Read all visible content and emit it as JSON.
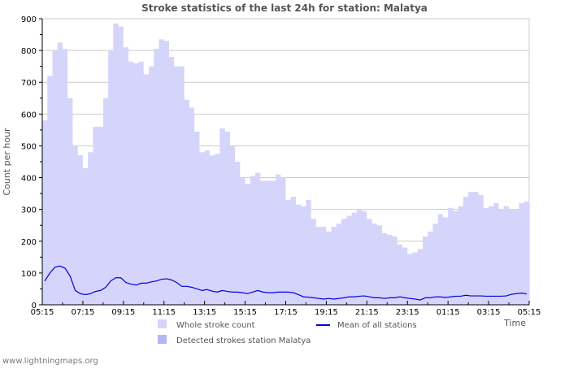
{
  "chart_data": {
    "type": "area",
    "title": "Stroke statistics of the last 24h for station: Malatya",
    "xlabel": "Time",
    "ylabel": "Count per hour",
    "ylim": [
      0,
      900
    ],
    "yticks": [
      "0",
      "100",
      "200",
      "300",
      "400",
      "500",
      "600",
      "700",
      "800",
      "900"
    ],
    "xticks": [
      "05:15",
      "07:15",
      "09:15",
      "11:15",
      "13:15",
      "15:15",
      "17:15",
      "19:15",
      "21:15",
      "23:15",
      "01:15",
      "03:15",
      "05:15"
    ],
    "x_interval_minutes": 15,
    "grid": true,
    "series": [
      {
        "name": "Whole stroke count",
        "type": "area",
        "color": "#d5d5fc",
        "values": [
          580,
          720,
          800,
          825,
          805,
          650,
          500,
          470,
          430,
          480,
          560,
          560,
          650,
          800,
          885,
          875,
          810,
          765,
          760,
          765,
          725,
          750,
          805,
          835,
          830,
          780,
          750,
          750,
          645,
          620,
          545,
          480,
          485,
          470,
          475,
          555,
          545,
          500,
          450,
          400,
          380,
          405,
          415,
          390,
          390,
          390,
          410,
          400,
          330,
          340,
          315,
          310,
          330,
          270,
          245,
          245,
          230,
          245,
          255,
          270,
          280,
          290,
          300,
          295,
          270,
          255,
          250,
          225,
          220,
          215,
          190,
          180,
          160,
          165,
          175,
          215,
          230,
          255,
          285,
          275,
          305,
          295,
          310,
          340,
          355,
          355,
          345,
          305,
          310,
          320,
          300,
          310,
          300,
          300,
          320,
          325
        ]
      },
      {
        "name": "Detected strokes station Malatya",
        "type": "area",
        "color": "#b5b5f7",
        "values": []
      },
      {
        "name": "Mean of all stations",
        "type": "line",
        "color": "#0000dd",
        "values": [
          75,
          100,
          118,
          122,
          115,
          90,
          45,
          35,
          32,
          35,
          42,
          45,
          55,
          75,
          85,
          85,
          70,
          65,
          62,
          68,
          68,
          72,
          75,
          80,
          82,
          78,
          70,
          58,
          58,
          55,
          50,
          45,
          48,
          43,
          40,
          45,
          42,
          40,
          40,
          38,
          35,
          40,
          45,
          40,
          38,
          38,
          40,
          40,
          40,
          38,
          32,
          25,
          24,
          22,
          20,
          18,
          20,
          18,
          20,
          22,
          25,
          25,
          27,
          28,
          25,
          22,
          22,
          20,
          22,
          22,
          25,
          22,
          20,
          18,
          15,
          22,
          22,
          25,
          25,
          23,
          25,
          27,
          27,
          30,
          28,
          28,
          28,
          27,
          27,
          27,
          27,
          28,
          33,
          35,
          37,
          34
        ]
      }
    ]
  },
  "footer": "www.lightningmaps.org"
}
